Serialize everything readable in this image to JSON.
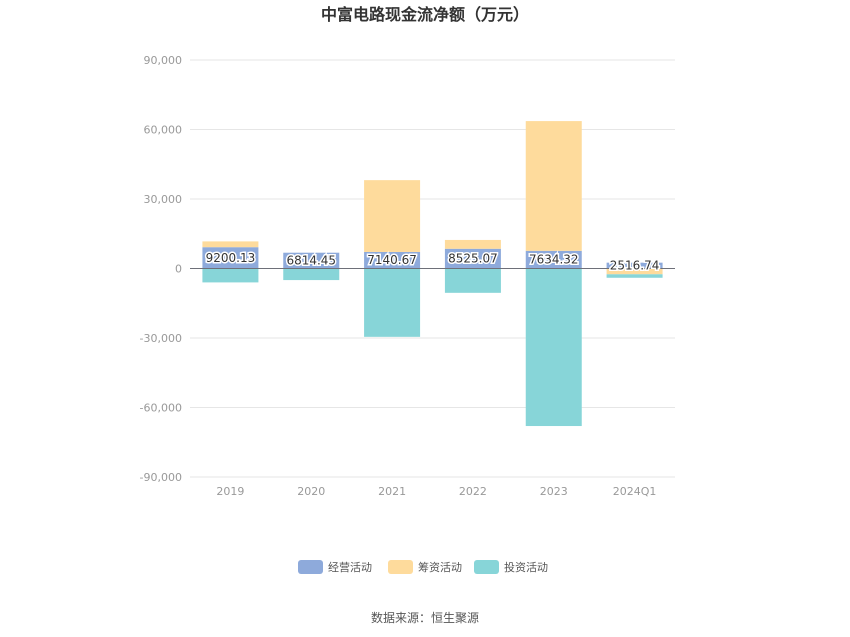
{
  "chart_data": {
    "type": "bar",
    "stacked": true,
    "title": "中富电路现金流净额（万元）",
    "categories": [
      "2019",
      "2020",
      "2021",
      "2022",
      "2023",
      "2024Q1"
    ],
    "series": [
      {
        "name": "经营活动",
        "color": "#8eaadb",
        "values": [
          9200.13,
          6814.45,
          7140.67,
          8525.07,
          7634.32,
          2516.74
        ]
      },
      {
        "name": "筹资活动",
        "color": "#fedb9c",
        "values": [
          2500,
          0,
          31000,
          3800,
          56000,
          -2500
        ]
      },
      {
        "name": "投资活动",
        "color": "#87d5d8",
        "values": [
          -6000,
          -5000,
          -29500,
          -10500,
          -68000,
          -1500
        ]
      }
    ],
    "data_labels": [
      "9200.13",
      "6814.45",
      "7140.67",
      "8525.07",
      "7634.32",
      "2516.74"
    ],
    "ylim": [
      -90000,
      90000
    ],
    "yticks": [
      90000,
      60000,
      30000,
      0,
      -30000,
      -60000,
      -90000
    ],
    "ytick_labels": [
      "90,000",
      "60,000",
      "30,000",
      "0",
      "-30,000",
      "-60,000",
      "-90,000"
    ],
    "grid": true,
    "legend_position": "bottom"
  },
  "source_text": "数据来源：恒生聚源"
}
